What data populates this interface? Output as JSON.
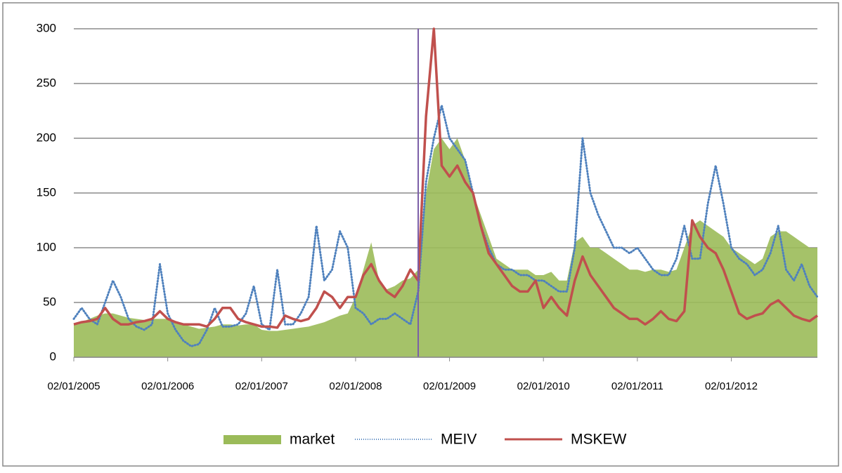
{
  "chart_data": {
    "type": "line",
    "categories": [
      "02/01/2005",
      null,
      null,
      null,
      null,
      null,
      null,
      null,
      null,
      null,
      null,
      null,
      "02/01/2006",
      null,
      null,
      null,
      null,
      null,
      null,
      null,
      null,
      null,
      null,
      null,
      "02/01/2007",
      null,
      null,
      null,
      null,
      null,
      null,
      null,
      null,
      null,
      null,
      null,
      "02/01/2008",
      null,
      null,
      null,
      null,
      null,
      null,
      null,
      null,
      null,
      null,
      null,
      "02/01/2009",
      null,
      null,
      null,
      null,
      null,
      null,
      null,
      null,
      null,
      null,
      null,
      "02/01/2010",
      null,
      null,
      null,
      null,
      null,
      null,
      null,
      null,
      null,
      null,
      null,
      "02/01/2011",
      null,
      null,
      null,
      null,
      null,
      null,
      null,
      null,
      null,
      null,
      null,
      "02/01/2012",
      null,
      null,
      null,
      null,
      null,
      null,
      null,
      null,
      null,
      null,
      null
    ],
    "series": [
      {
        "name": "market",
        "color": "#9bbb59",
        "style": "area",
        "values": [
          30,
          32,
          35,
          38,
          40,
          40,
          38,
          36,
          35,
          34,
          35,
          35,
          35,
          33,
          30,
          28,
          26,
          27,
          28,
          30,
          30,
          29,
          30,
          30,
          25,
          24,
          24,
          25,
          26,
          27,
          28,
          30,
          32,
          35,
          38,
          40,
          55,
          80,
          105,
          70,
          62,
          65,
          70,
          72,
          80,
          150,
          190,
          200,
          190,
          200,
          180,
          150,
          130,
          110,
          90,
          85,
          80,
          80,
          80,
          75,
          75,
          78,
          70,
          70,
          105,
          110,
          100,
          100,
          95,
          90,
          85,
          80,
          80,
          78,
          80,
          80,
          78,
          80,
          100,
          120,
          125,
          120,
          115,
          110,
          100,
          95,
          90,
          85,
          90,
          110,
          115,
          115,
          110,
          105,
          100,
          100
        ]
      },
      {
        "name": "MEIV",
        "color": "#4f81bd",
        "style": "dotted",
        "values": [
          35,
          45,
          35,
          30,
          50,
          70,
          55,
          35,
          28,
          25,
          30,
          85,
          40,
          25,
          15,
          10,
          12,
          25,
          45,
          28,
          28,
          30,
          40,
          65,
          30,
          25,
          80,
          30,
          30,
          40,
          55,
          120,
          70,
          80,
          115,
          100,
          45,
          40,
          30,
          35,
          35,
          40,
          35,
          30,
          60,
          160,
          200,
          230,
          200,
          190,
          180,
          150,
          120,
          100,
          85,
          80,
          80,
          75,
          75,
          70,
          70,
          65,
          60,
          60,
          100,
          200,
          150,
          130,
          115,
          100,
          100,
          95,
          100,
          90,
          80,
          75,
          75,
          90,
          120,
          90,
          90,
          140,
          175,
          140,
          100,
          90,
          85,
          75,
          80,
          95,
          120,
          80,
          70,
          85,
          65,
          55
        ]
      },
      {
        "name": "MSKEW",
        "color": "#c0504d",
        "style": "solid",
        "values": [
          30,
          32,
          33,
          35,
          45,
          35,
          30,
          30,
          32,
          33,
          35,
          42,
          35,
          32,
          30,
          30,
          30,
          28,
          35,
          45,
          45,
          35,
          32,
          30,
          28,
          28,
          27,
          38,
          35,
          33,
          35,
          45,
          60,
          55,
          45,
          55,
          55,
          75,
          85,
          70,
          60,
          55,
          65,
          80,
          70,
          220,
          300,
          175,
          165,
          175,
          160,
          150,
          120,
          95,
          85,
          75,
          65,
          60,
          60,
          70,
          45,
          55,
          45,
          38,
          70,
          92,
          75,
          65,
          55,
          45,
          40,
          35,
          35,
          30,
          35,
          42,
          35,
          33,
          42,
          125,
          110,
          100,
          95,
          80,
          60,
          40,
          35,
          38,
          40,
          48,
          52,
          45,
          38,
          35,
          33,
          38
        ]
      }
    ],
    "ylim": [
      0,
      300
    ],
    "yticks": [
      0,
      50,
      100,
      150,
      200,
      250,
      300
    ],
    "grid": true,
    "markers": [
      {
        "index": 44,
        "color": "#7b5ea7"
      }
    ],
    "legend": "bottom"
  }
}
